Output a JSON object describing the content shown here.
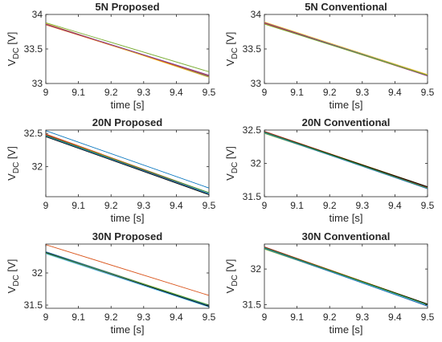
{
  "colors": [
    "#0072BD",
    "#D95319",
    "#EDB120",
    "#7E2F8E",
    "#77AC30",
    "#4DBEEE",
    "#A2142F",
    "#000000",
    "#1f6fb0",
    "#3a9a3a"
  ],
  "chart_data": [
    {
      "type": "line",
      "title": "5N Proposed",
      "xlabel": "time [s]",
      "ylabel_main": "V",
      "ylabel_sub": "DC",
      "ylabel_unit": " [V]",
      "xlim": [
        9,
        9.5
      ],
      "ylim": [
        33,
        34
      ],
      "xticks": [
        "9",
        "9.1",
        "9.2",
        "9.3",
        "9.4",
        "9.5"
      ],
      "yticks": [
        "33",
        "33.5",
        "34"
      ],
      "series": [
        {
          "x": [
            9,
            9.5
          ],
          "values": [
            33.86,
            33.1
          ]
        },
        {
          "x": [
            9,
            9.5
          ],
          "values": [
            33.85,
            33.11
          ]
        },
        {
          "x": [
            9,
            9.5
          ],
          "values": [
            33.87,
            33.09
          ]
        },
        {
          "x": [
            9,
            9.5
          ],
          "values": [
            33.86,
            33.12
          ]
        },
        {
          "x": [
            9,
            9.5
          ],
          "values": [
            33.88,
            33.17
          ]
        }
      ]
    },
    {
      "type": "line",
      "title": "5N Conventional",
      "xlabel": "time [s]",
      "ylabel_main": "V",
      "ylabel_sub": "DC",
      "ylabel_unit": " [V]",
      "xlim": [
        9,
        9.5
      ],
      "ylim": [
        33,
        34
      ],
      "xticks": [
        "9",
        "9.1",
        "9.2",
        "9.3",
        "9.4",
        "9.5"
      ],
      "yticks": [
        "33",
        "33.5",
        "34"
      ],
      "series": [
        {
          "x": [
            9,
            9.5
          ],
          "values": [
            33.88,
            33.12
          ]
        },
        {
          "x": [
            9,
            9.5
          ],
          "values": [
            33.87,
            33.11
          ]
        },
        {
          "x": [
            9,
            9.5
          ],
          "values": [
            33.89,
            33.13
          ]
        },
        {
          "x": [
            9,
            9.5
          ],
          "values": [
            33.88,
            33.11
          ]
        },
        {
          "x": [
            9,
            9.5
          ],
          "values": [
            33.86,
            33.12
          ]
        }
      ]
    },
    {
      "type": "line",
      "title": "20N Proposed",
      "xlabel": "time [s]",
      "ylabel_main": "V",
      "ylabel_sub": "DC",
      "ylabel_unit": " [V]",
      "xlim": [
        9,
        9.5
      ],
      "ylim": [
        31.55,
        32.55
      ],
      "xticks": [
        "9",
        "9.1",
        "9.2",
        "9.3",
        "9.4",
        "9.5"
      ],
      "yticks": [
        "32",
        "32.5"
      ],
      "series": [
        {
          "x": [
            9,
            9.5
          ],
          "values": [
            32.54,
            31.68
          ]
        },
        {
          "x": [
            9,
            9.5
          ],
          "values": [
            32.49,
            31.61
          ]
        },
        {
          "x": [
            9,
            9.5
          ],
          "values": [
            32.48,
            31.6
          ]
        },
        {
          "x": [
            9,
            9.5
          ],
          "values": [
            32.47,
            31.59
          ]
        },
        {
          "x": [
            9,
            9.5
          ],
          "values": [
            32.46,
            31.58
          ]
        },
        {
          "x": [
            9,
            9.5
          ],
          "values": [
            32.47,
            31.6
          ]
        },
        {
          "x": [
            9,
            9.5
          ],
          "values": [
            32.48,
            31.59
          ]
        },
        {
          "x": [
            9,
            9.5
          ],
          "values": [
            32.45,
            31.58
          ]
        },
        {
          "x": [
            9,
            9.5
          ],
          "values": [
            32.46,
            31.59
          ]
        },
        {
          "x": [
            9,
            9.5
          ],
          "values": [
            32.47,
            31.61
          ]
        }
      ]
    },
    {
      "type": "line",
      "title": "20N Conventional",
      "xlabel": "time [s]",
      "ylabel_main": "V",
      "ylabel_sub": "DC",
      "ylabel_unit": " [V]",
      "xlim": [
        9,
        9.5
      ],
      "ylim": [
        31.5,
        32.5
      ],
      "xticks": [
        "9",
        "9.1",
        "9.2",
        "9.3",
        "9.4",
        "9.5"
      ],
      "yticks": [
        "31.5",
        "32",
        "32.5"
      ],
      "series": [
        {
          "x": [
            9,
            9.5
          ],
          "values": [
            32.47,
            31.64
          ]
        },
        {
          "x": [
            9,
            9.5
          ],
          "values": [
            32.46,
            31.63
          ]
        },
        {
          "x": [
            9,
            9.5
          ],
          "values": [
            32.48,
            31.65
          ]
        },
        {
          "x": [
            9,
            9.5
          ],
          "values": [
            32.47,
            31.62
          ]
        },
        {
          "x": [
            9,
            9.5
          ],
          "values": [
            32.45,
            31.64
          ]
        },
        {
          "x": [
            9,
            9.5
          ],
          "values": [
            32.46,
            31.63
          ]
        },
        {
          "x": [
            9,
            9.5
          ],
          "values": [
            32.48,
            31.64
          ]
        },
        {
          "x": [
            9,
            9.5
          ],
          "values": [
            32.47,
            31.65
          ]
        },
        {
          "x": [
            9,
            9.5
          ],
          "values": [
            32.46,
            31.62
          ]
        },
        {
          "x": [
            9,
            9.5
          ],
          "values": [
            32.47,
            31.63
          ]
        }
      ]
    },
    {
      "type": "line",
      "title": "30N Proposed",
      "xlabel": "time [s]",
      "ylabel_main": "V",
      "ylabel_sub": "DC",
      "ylabel_unit": " [V]",
      "xlim": [
        9,
        9.5
      ],
      "ylim": [
        31.45,
        32.45
      ],
      "xticks": [
        "9",
        "9.1",
        "9.2",
        "9.3",
        "9.4",
        "9.5"
      ],
      "yticks": [
        "31.5",
        "32"
      ],
      "series": [
        {
          "x": [
            9,
            9.5
          ],
          "values": [
            32.32,
            31.49
          ]
        },
        {
          "x": [
            9,
            9.5
          ],
          "values": [
            32.44,
            31.65
          ]
        },
        {
          "x": [
            9,
            9.5
          ],
          "values": [
            32.33,
            31.5
          ]
        },
        {
          "x": [
            9,
            9.5
          ],
          "values": [
            32.31,
            31.48
          ]
        },
        {
          "x": [
            9,
            9.5
          ],
          "values": [
            32.32,
            31.5
          ]
        },
        {
          "x": [
            9,
            9.5
          ],
          "values": [
            32.3,
            31.47
          ]
        },
        {
          "x": [
            9,
            9.5
          ],
          "values": [
            32.31,
            31.49
          ]
        },
        {
          "x": [
            9,
            9.5
          ],
          "values": [
            32.32,
            31.48
          ]
        },
        {
          "x": [
            9,
            9.5
          ],
          "values": [
            32.33,
            31.49
          ]
        },
        {
          "x": [
            9,
            9.5
          ],
          "values": [
            32.31,
            31.5
          ]
        }
      ]
    },
    {
      "type": "line",
      "title": "30N Conventional",
      "xlabel": "time [s]",
      "ylabel_main": "V",
      "ylabel_sub": "DC",
      "ylabel_unit": " [V]",
      "xlim": [
        9,
        9.5
      ],
      "ylim": [
        31.45,
        32.35
      ],
      "xticks": [
        "9",
        "9.1",
        "9.2",
        "9.3",
        "9.4",
        "9.5"
      ],
      "yticks": [
        "31.5",
        "32"
      ],
      "series": [
        {
          "x": [
            9,
            9.5
          ],
          "values": [
            32.3,
            31.5
          ]
        },
        {
          "x": [
            9,
            9.5
          ],
          "values": [
            32.29,
            31.49
          ]
        },
        {
          "x": [
            9,
            9.5
          ],
          "values": [
            32.31,
            31.51
          ]
        },
        {
          "x": [
            9,
            9.5
          ],
          "values": [
            32.3,
            31.48
          ]
        },
        {
          "x": [
            9,
            9.5
          ],
          "values": [
            32.28,
            31.5
          ]
        },
        {
          "x": [
            9,
            9.5
          ],
          "values": [
            32.29,
            31.49
          ]
        },
        {
          "x": [
            9,
            9.5
          ],
          "values": [
            32.31,
            31.5
          ]
        },
        {
          "x": [
            9,
            9.5
          ],
          "values": [
            32.3,
            31.51
          ]
        },
        {
          "x": [
            9,
            9.5
          ],
          "values": [
            32.29,
            31.48
          ]
        },
        {
          "x": [
            9,
            9.5
          ],
          "values": [
            32.3,
            31.5
          ]
        }
      ]
    }
  ]
}
